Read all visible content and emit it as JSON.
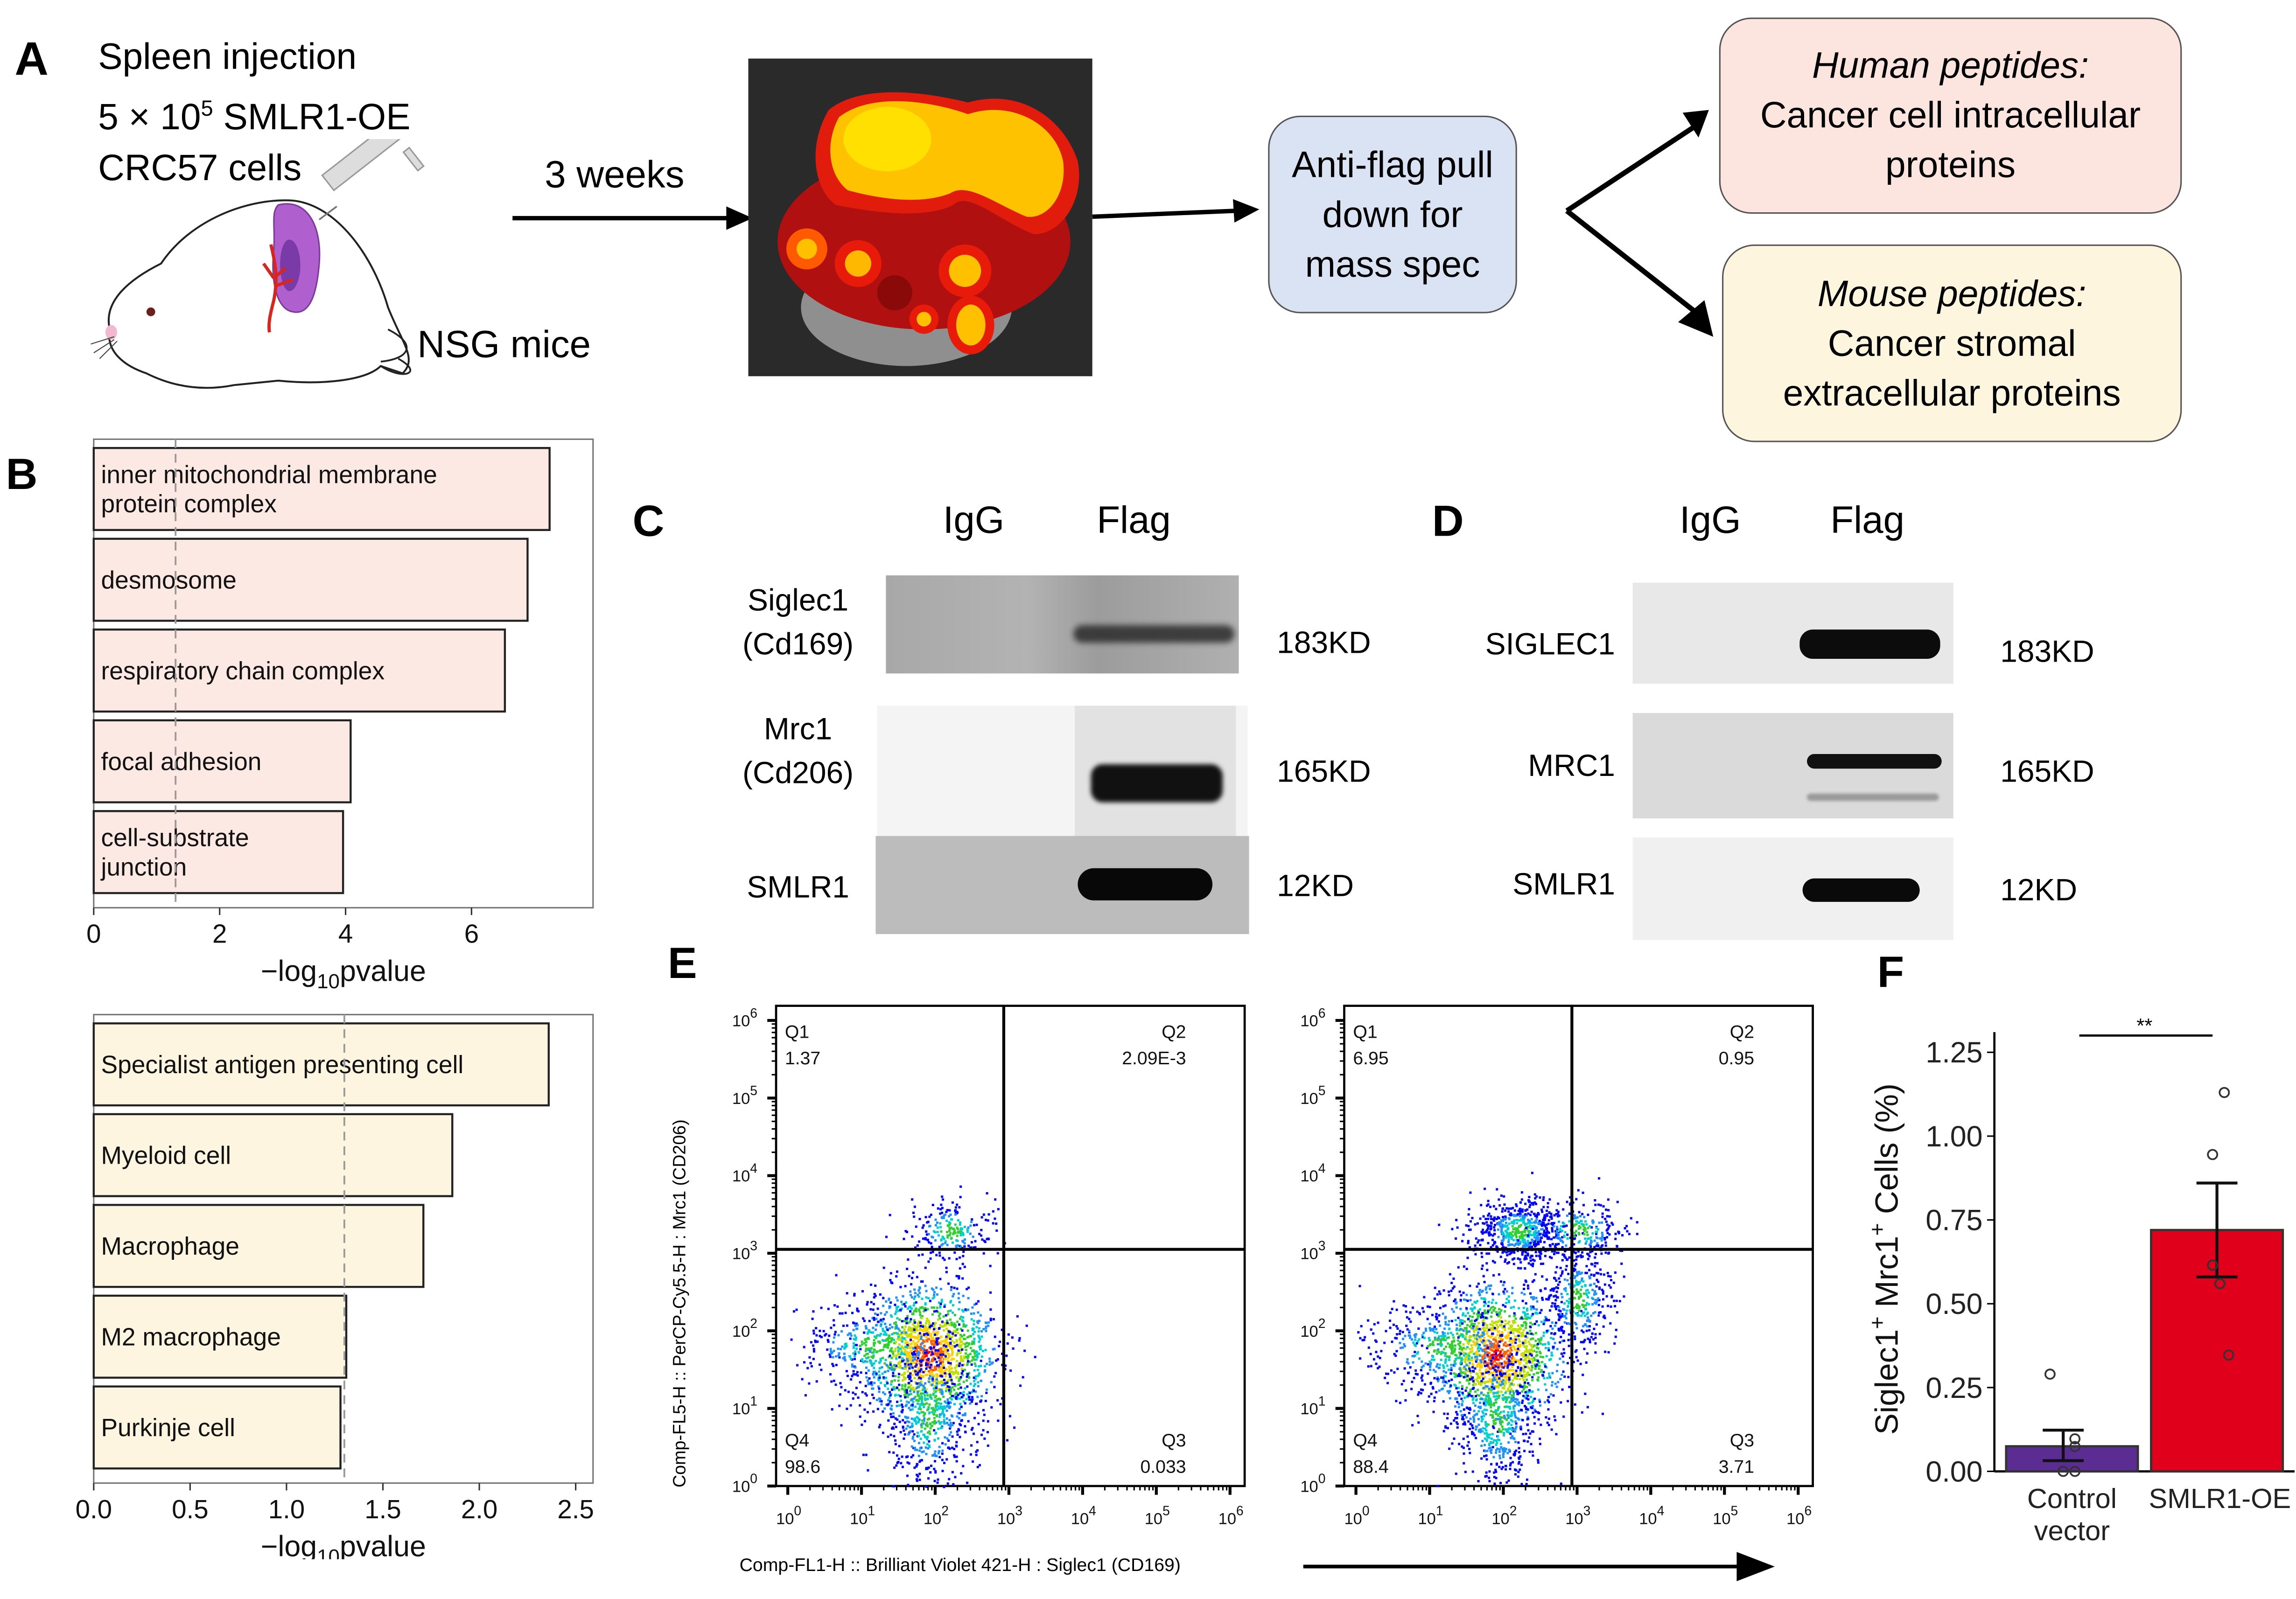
{
  "figure": {
    "panel_labels": {
      "a": "A",
      "b": "B",
      "c": "C",
      "d": "D",
      "e": "E",
      "f": "F"
    }
  },
  "panel_a": {
    "injection_lines": [
      "Spleen injection",
      "5 × 10",
      "5",
      " SMLR1-OE",
      "CRC57 cells"
    ],
    "line1": "Spleen injection",
    "line2_prefix": "5 × 10",
    "line2_sup": "5",
    "line2_suffix": " SMLR1-OE",
    "line3": "CRC57 cells",
    "mouse_label": "NSG mice",
    "arrow_label": "3 weeks",
    "pulldown_box": [
      "Anti-flag pull",
      "down for",
      "mass spec"
    ],
    "human_box": {
      "title": "Human peptides:",
      "lines": [
        "Cancer cell intracellular",
        "proteins"
      ]
    },
    "mouse_box": {
      "title": "Mouse peptides:",
      "lines": [
        "Cancer stromal",
        "extracellular proteins"
      ]
    },
    "colors": {
      "pulldown": "#dae3f3",
      "human": "#fbe5de",
      "mouse": "#fdf5dd"
    }
  },
  "panel_c": {
    "lanes": [
      "IgG",
      "Flag"
    ],
    "rows": [
      {
        "label": [
          "Siglec1",
          "(Cd169)"
        ],
        "kd": "183KD"
      },
      {
        "label": [
          "Mrc1",
          "(Cd206)"
        ],
        "kd": "165KD"
      },
      {
        "label": [
          "SMLR1"
        ],
        "kd": "12KD"
      }
    ]
  },
  "panel_d": {
    "lanes": [
      "IgG",
      "Flag"
    ],
    "rows": [
      {
        "label": [
          "SIGLEC1"
        ],
        "kd": "183KD"
      },
      {
        "label": [
          "MRC1"
        ],
        "kd": "165KD"
      },
      {
        "label": [
          "SMLR1"
        ],
        "kd": "12KD"
      }
    ]
  },
  "panel_e": {
    "ylabel": "Comp-FL5-H :: PerCP-Cy5.5-H : Mrc1 (CD206)",
    "xlabel": "Comp-FL1-H :: Brilliant Violet 421-H : Siglec1 (CD169)",
    "tick_base": "10",
    "tick_exps": [
      "0",
      "1",
      "2",
      "3",
      "4",
      "5",
      "6"
    ],
    "plots": [
      {
        "name": "control",
        "quadrants": {
          "Q1": "1.37",
          "Q2": "2.09E-3",
          "Q3": "0.033",
          "Q4": "98.6"
        }
      },
      {
        "name": "smlr1-oe",
        "quadrants": {
          "Q1": "6.95",
          "Q2": "0.95",
          "Q3": "3.71",
          "Q4": "88.4"
        }
      }
    ],
    "quadrant_names": [
      "Q1",
      "Q2",
      "Q3",
      "Q4"
    ]
  },
  "chart_data": [
    {
      "type": "bar",
      "orientation": "horizontal",
      "panel": "B-top",
      "categories": [
        "inner mitochondrial membrane protein complex",
        "desmosome",
        "respiratory chain complex",
        "focal adhesion",
        "cell-substrate junction"
      ],
      "category_lines": [
        [
          "inner mitochondrial membrane",
          "protein complex"
        ],
        [
          "desmosome"
        ],
        [
          "respiratory chain complex"
        ],
        [
          "focal adhesion"
        ],
        [
          "cell-substrate",
          "junction"
        ]
      ],
      "values": [
        7.24,
        6.89,
        6.53,
        4.08,
        3.96
      ],
      "xlabel_prefix": "−log",
      "xlabel_sub": "10",
      "xlabel_suffix": "pvalue",
      "xticks": [
        "0",
        "2",
        "4",
        "6"
      ],
      "xtick_values": [
        0,
        2,
        4,
        6
      ],
      "xlim": [
        0,
        7.93
      ],
      "reference_line": 1.3,
      "bar_color": "#fde9e4",
      "grid": false
    },
    {
      "type": "bar",
      "orientation": "horizontal",
      "panel": "B-bottom",
      "categories": [
        "Specialist antigen presenting cell",
        "Myeloid cell",
        "Macrophage",
        "M2 macrophage",
        "Purkinje cell"
      ],
      "category_lines": [
        [
          "Specialist antigen presenting cell"
        ],
        [
          "Myeloid cell"
        ],
        [
          "Macrophage"
        ],
        [
          "M2 macrophage"
        ],
        [
          "Purkinje cell"
        ]
      ],
      "values": [
        2.36,
        1.86,
        1.71,
        1.31,
        1.28
      ],
      "xlabel_prefix": "−log",
      "xlabel_sub": "10",
      "xlabel_suffix": "pvalue",
      "xticks": [
        "0.0",
        "0.5",
        "1.0",
        "1.5",
        "2.0",
        "2.5"
      ],
      "xtick_values": [
        0,
        0.5,
        1.0,
        1.5,
        2.0,
        2.5
      ],
      "xlim": [
        0,
        2.59
      ],
      "reference_line": 1.3,
      "bar_color": "#fdf5df",
      "grid": false
    },
    {
      "type": "bar",
      "panel": "F",
      "categories": [
        "Control vector",
        "SMLR1-OE"
      ],
      "category_lines": [
        [
          "Control",
          "vector"
        ],
        [
          "SMLR1-OE"
        ]
      ],
      "values": [
        0.075,
        0.72
      ],
      "errors_low": [
        0.032,
        0.58
      ],
      "errors_high": [
        0.123,
        0.86
      ],
      "points": [
        [
          0.29,
          0.097,
          0.074,
          0.0,
          0.0
        ],
        [
          1.13,
          0.945,
          0.615,
          0.56,
          0.347
        ]
      ],
      "colors": [
        "#5b2c91",
        "#e0001b"
      ],
      "ylabel": "Siglec1+ Mrc1+ Cells (%)",
      "ylabel_parts": [
        "Siglec1",
        "+",
        " Mrc1",
        "+",
        " Cells (%)"
      ],
      "yticks": [
        "0.00",
        "0.25",
        "0.50",
        "0.75",
        "1.00",
        "1.25"
      ],
      "ytick_values": [
        0,
        0.25,
        0.5,
        0.75,
        1.0,
        1.25
      ],
      "ylim": [
        0,
        1.31
      ],
      "significance": "**",
      "grid": false
    }
  ]
}
